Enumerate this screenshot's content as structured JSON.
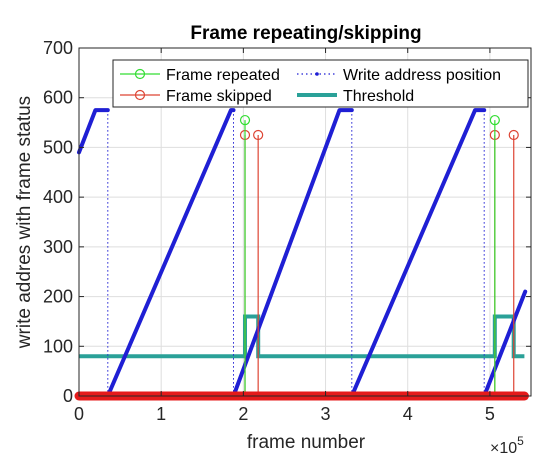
{
  "chart_data": {
    "type": "line",
    "title": "Frame repeating/skipping",
    "xlabel": "frame number",
    "ylabel": "write addres with frame status",
    "x_exponent_base": "×10",
    "x_exponent_power": "5",
    "xlim": [
      0,
      550000
    ],
    "ylim": [
      0,
      700
    ],
    "xticks": [
      0,
      100000,
      200000,
      300000,
      400000,
      500000
    ],
    "xtick_labels": [
      "0",
      "1",
      "2",
      "3",
      "4",
      "5"
    ],
    "yticks": [
      0,
      100,
      200,
      300,
      400,
      500,
      600,
      700
    ],
    "ytick_labels": [
      "0",
      "100",
      "200",
      "300",
      "400",
      "500",
      "600",
      "700"
    ],
    "grid": true,
    "legend_placement": "top-right",
    "colors": {
      "repeated": "#33dd33",
      "skipped": "#dd4433",
      "write_address": "#1f1fd4",
      "threshold": "#2aa198"
    },
    "series": [
      {
        "name": "Frame repeated",
        "style": "stem",
        "x": [
          202000,
          506000
        ],
        "y": [
          555,
          555
        ]
      },
      {
        "name": "Frame skipped",
        "style": "stem",
        "x": [
          202000,
          218000,
          506000,
          529000
        ],
        "y": [
          525,
          525,
          525,
          525
        ]
      },
      {
        "name": "Write address position",
        "style": "line",
        "segments": [
          {
            "x": [
              0,
              20000,
              35000
            ],
            "y": [
              490,
              575,
              575
            ]
          },
          {
            "x": [
              35000,
              35000
            ],
            "y": [
              575,
              0
            ]
          },
          {
            "x": [
              35000,
              185000,
              188000
            ],
            "y": [
              0,
              575,
              575
            ]
          },
          {
            "x": [
              188000,
              188000
            ],
            "y": [
              575,
              0
            ]
          },
          {
            "x": [
              188000,
              317000,
              332000
            ],
            "y": [
              0,
              575,
              575
            ]
          },
          {
            "x": [
              332000,
              332000
            ],
            "y": [
              575,
              0
            ]
          },
          {
            "x": [
              332000,
              482000,
              493000
            ],
            "y": [
              0,
              575,
              575
            ]
          },
          {
            "x": [
              493000,
              493000
            ],
            "y": [
              575,
              0
            ]
          },
          {
            "x": [
              493000,
              543000
            ],
            "y": [
              0,
              210
            ]
          }
        ]
      },
      {
        "name": "Threshold",
        "style": "step",
        "x": [
          0,
          202000,
          202000,
          218000,
          218000,
          506000,
          506000,
          529000,
          529000,
          542000
        ],
        "y": [
          80,
          80,
          160,
          160,
          80,
          80,
          160,
          160,
          80,
          80
        ]
      }
    ],
    "baseline": {
      "color": "#e51a1a",
      "y": 0
    }
  }
}
